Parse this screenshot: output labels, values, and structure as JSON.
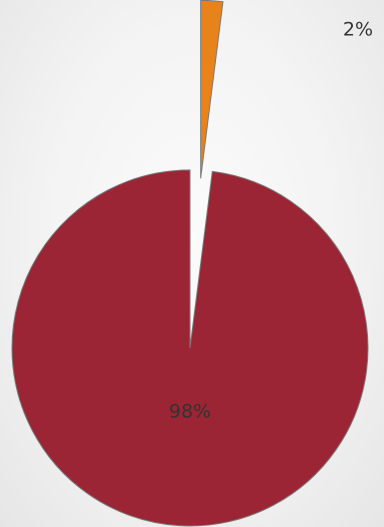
{
  "chart_data": {
    "type": "pie",
    "categories": [
      "",
      ""
    ],
    "values": [
      98,
      2
    ],
    "labels": [
      "98%",
      "2%"
    ],
    "colors": [
      "#9b2535",
      "#e8821a"
    ],
    "exploded": [
      false,
      true
    ],
    "title": "",
    "legend": "none"
  }
}
